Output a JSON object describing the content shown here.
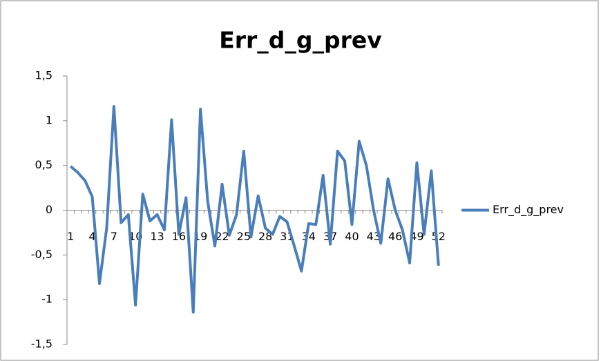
{
  "chart_data": {
    "type": "line",
    "title": "Err_d_g_prev",
    "categories": [
      1,
      null,
      null,
      4,
      null,
      null,
      7,
      null,
      null,
      10,
      null,
      null,
      13,
      null,
      null,
      16,
      null,
      null,
      19,
      null,
      null,
      22,
      null,
      null,
      25,
      null,
      null,
      28,
      null,
      null,
      31,
      null,
      null,
      34,
      null,
      null,
      37,
      null,
      null,
      40,
      null,
      null,
      43,
      null,
      null,
      46,
      null,
      null,
      49,
      null,
      null,
      52
    ],
    "series": [
      {
        "name": "Err_d_g_prev",
        "color": "#4a7ebb",
        "values": [
          0.49,
          0.42,
          0.33,
          0.15,
          -0.82,
          -0.2,
          1.16,
          -0.14,
          -0.05,
          -1.06,
          0.18,
          -0.12,
          -0.05,
          -0.22,
          1.01,
          -0.27,
          0.14,
          -1.14,
          1.13,
          0.1,
          -0.4,
          0.29,
          -0.28,
          -0.05,
          0.66,
          -0.3,
          0.16,
          -0.2,
          -0.27,
          -0.07,
          -0.13,
          -0.4,
          -0.68,
          -0.15,
          -0.16,
          0.39,
          -0.38,
          0.66,
          0.55,
          -0.16,
          0.77,
          0.5,
          0,
          -0.37,
          0.35,
          0,
          -0.22,
          -0.59,
          0.53,
          -0.27,
          0.44,
          -0.62
        ]
      }
    ],
    "ylim": [
      -1.5,
      1.5
    ],
    "yticks": [
      {
        "value": -1.5,
        "label": "-1,5"
      },
      -1,
      {
        "value": -0.5,
        "label": "-0,5"
      },
      0,
      {
        "value": 0.5,
        "label": "0,5"
      },
      1,
      {
        "value": 1.5,
        "label": "1,5"
      }
    ],
    "legend": "right"
  }
}
